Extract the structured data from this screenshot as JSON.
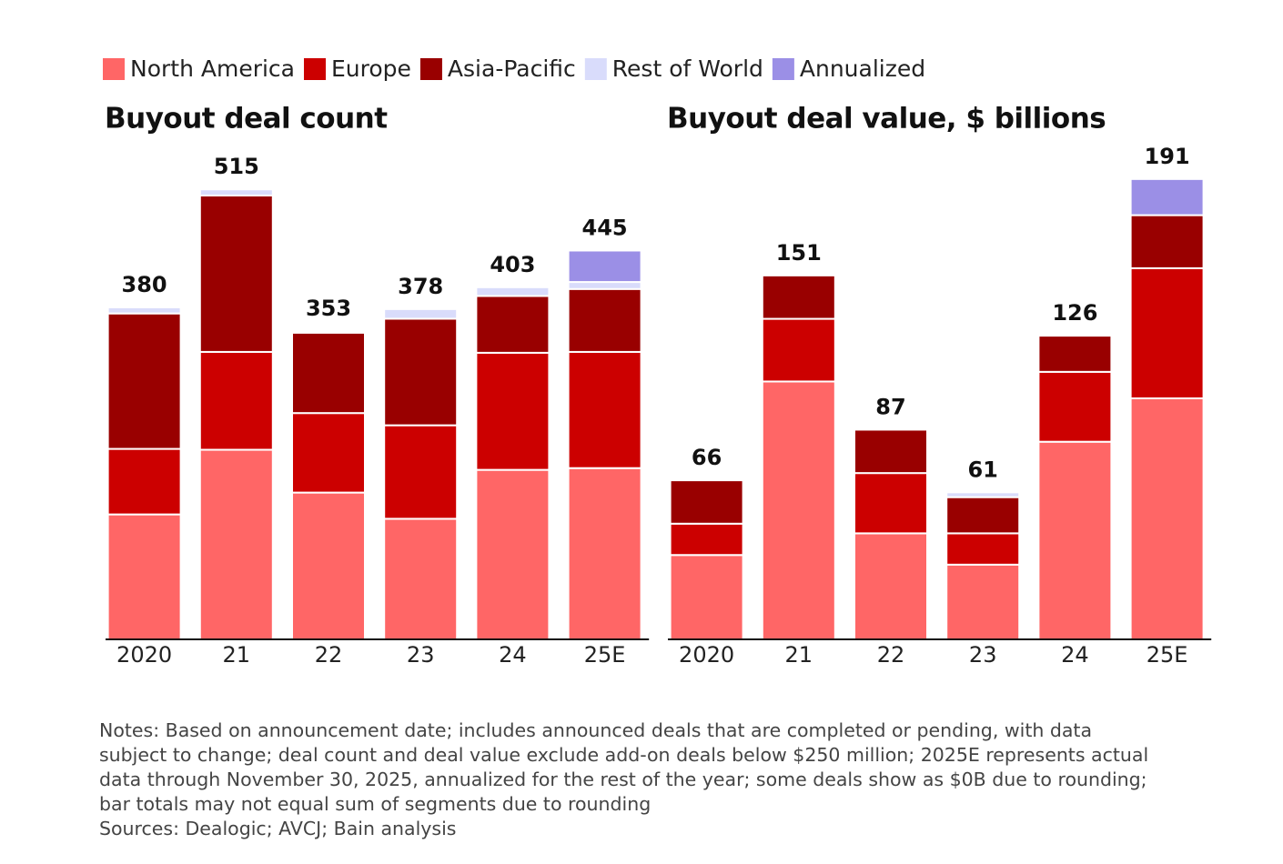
{
  "chart_data": [
    {
      "type": "stacked-bar",
      "title": "Buyout deal count",
      "categories": [
        "2020",
        "21",
        "22",
        "23",
        "24",
        "25E"
      ],
      "series": [
        {
          "name": "North America",
          "color": "#ff6666",
          "values": [
            143,
            217,
            168,
            138,
            194,
            196
          ]
        },
        {
          "name": "Europe",
          "color": "#cc0000",
          "values": [
            75,
            112,
            91,
            107,
            134,
            133
          ]
        },
        {
          "name": "Asia-Pacific",
          "color": "#990000",
          "values": [
            155,
            179,
            92,
            122,
            65,
            72
          ]
        },
        {
          "name": "Rest of World",
          "color": "#d9dcfb",
          "values": [
            7,
            7,
            2,
            11,
            10,
            8
          ]
        },
        {
          "name": "Annualized",
          "color": "#9b8fe6",
          "values": [
            0,
            0,
            0,
            0,
            0,
            36
          ]
        }
      ],
      "totals": [
        380,
        515,
        353,
        378,
        403,
        445
      ],
      "ylim": [
        0,
        560
      ]
    },
    {
      "type": "stacked-bar",
      "title": "Buyout deal value, $ billions",
      "categories": [
        "2020",
        "21",
        "22",
        "23",
        "24",
        "25E"
      ],
      "series": [
        {
          "name": "North America",
          "color": "#ff6666",
          "values": [
            35,
            107,
            44,
            31,
            82,
            100
          ]
        },
        {
          "name": "Europe",
          "color": "#cc0000",
          "values": [
            13,
            26,
            25,
            13,
            29,
            54
          ]
        },
        {
          "name": "Asia-Pacific",
          "color": "#990000",
          "values": [
            18,
            18,
            18,
            15,
            15,
            22
          ]
        },
        {
          "name": "Rest of World",
          "color": "#d9dcfb",
          "values": [
            0,
            0,
            0,
            2,
            0,
            0
          ]
        },
        {
          "name": "Annualized",
          "color": "#9b8fe6",
          "values": [
            0,
            0,
            0,
            0,
            0,
            15
          ]
        }
      ],
      "totals": [
        66,
        151,
        87,
        61,
        126,
        191
      ],
      "ylim": [
        0,
        200
      ]
    }
  ],
  "notes": [
    "Notes: Based on announcement date; includes announced deals that are completed or pending, with data",
    "subject to change; deal count and deal value exclude add-on deals below $250 million; 2025E represents actual",
    "data through November 30, 2025, annualized for the rest of the year; some deals show as $0B due to rounding;",
    "bar totals may not equal sum of segments due to rounding"
  ],
  "sources": "Sources: Dealogic; AVCJ; Bain analysis"
}
